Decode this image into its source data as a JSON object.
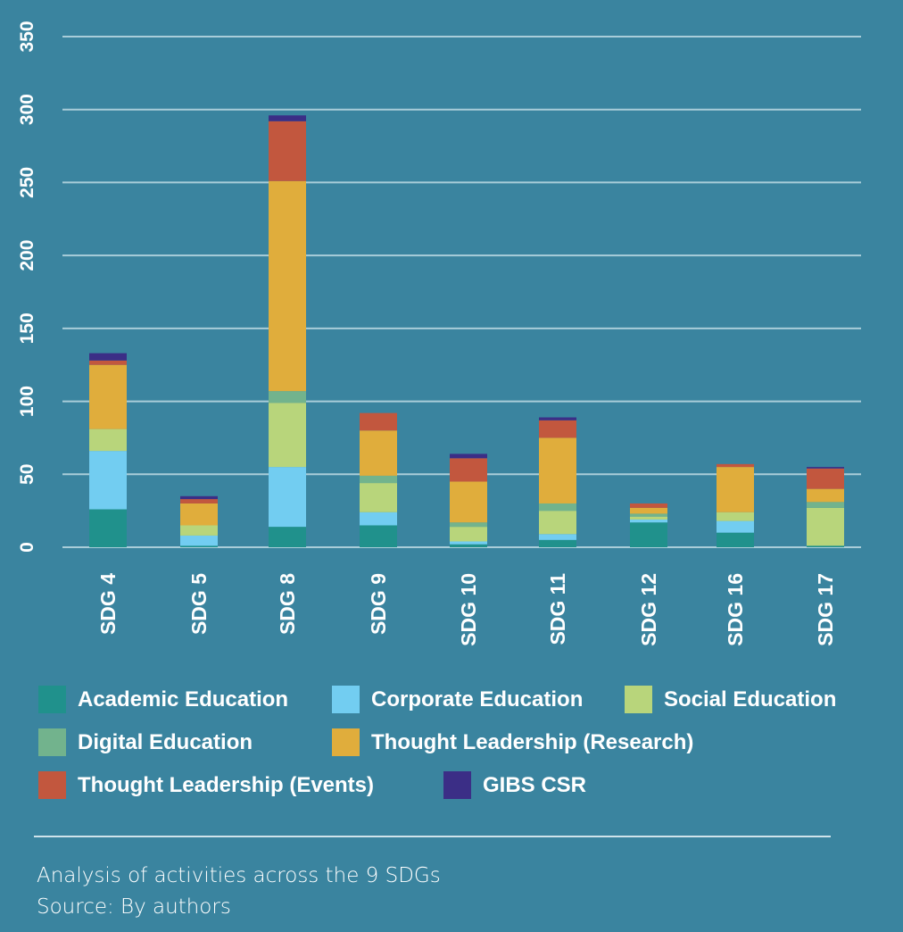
{
  "chart_data": {
    "type": "bar",
    "stacked": true,
    "categories": [
      "SDG 4",
      "SDG 5",
      "SDG 8",
      "SDG 9",
      "SDG 10",
      "SDG 11",
      "SDG 12",
      "SDG 16",
      "SDG 17"
    ],
    "series": [
      {
        "name": "Academic Education",
        "color": "#20918c",
        "values": [
          26,
          1,
          14,
          15,
          2,
          5,
          17,
          10,
          1
        ]
      },
      {
        "name": "Corporate Education",
        "color": "#72cdf1",
        "values": [
          40,
          7,
          41,
          9,
          2,
          4,
          2,
          8,
          0
        ]
      },
      {
        "name": "Social Education",
        "color": "#b8d57b",
        "values": [
          15,
          7,
          44,
          20,
          10,
          16,
          2,
          6,
          26
        ]
      },
      {
        "name": "Digital Education",
        "color": "#72b38d",
        "values": [
          0,
          0,
          8,
          5,
          3,
          5,
          2,
          0,
          4
        ]
      },
      {
        "name": "Thought Leadership (Research)",
        "color": "#e0ad3c",
        "values": [
          44,
          15,
          144,
          31,
          28,
          45,
          4,
          31,
          9
        ]
      },
      {
        "name": "Thought Leadership (Events)",
        "color": "#c2573e",
        "values": [
          3,
          3,
          41,
          12,
          16,
          12,
          3,
          2,
          14
        ]
      },
      {
        "name": "GIBS CSR",
        "color": "#3b2e86",
        "values": [
          5,
          2,
          4,
          0,
          3,
          2,
          0,
          0,
          1
        ]
      }
    ],
    "yticks": [
      "0",
      "50",
      "100",
      "150",
      "200",
      "250",
      "300",
      "350"
    ],
    "ylim": [
      0,
      350
    ],
    "grid": true,
    "legend_position": "bottom",
    "background": "#3a849f"
  },
  "caption": {
    "line1": "Analysis of activities across the 9 SDGs",
    "line2": "Source: By authors"
  }
}
